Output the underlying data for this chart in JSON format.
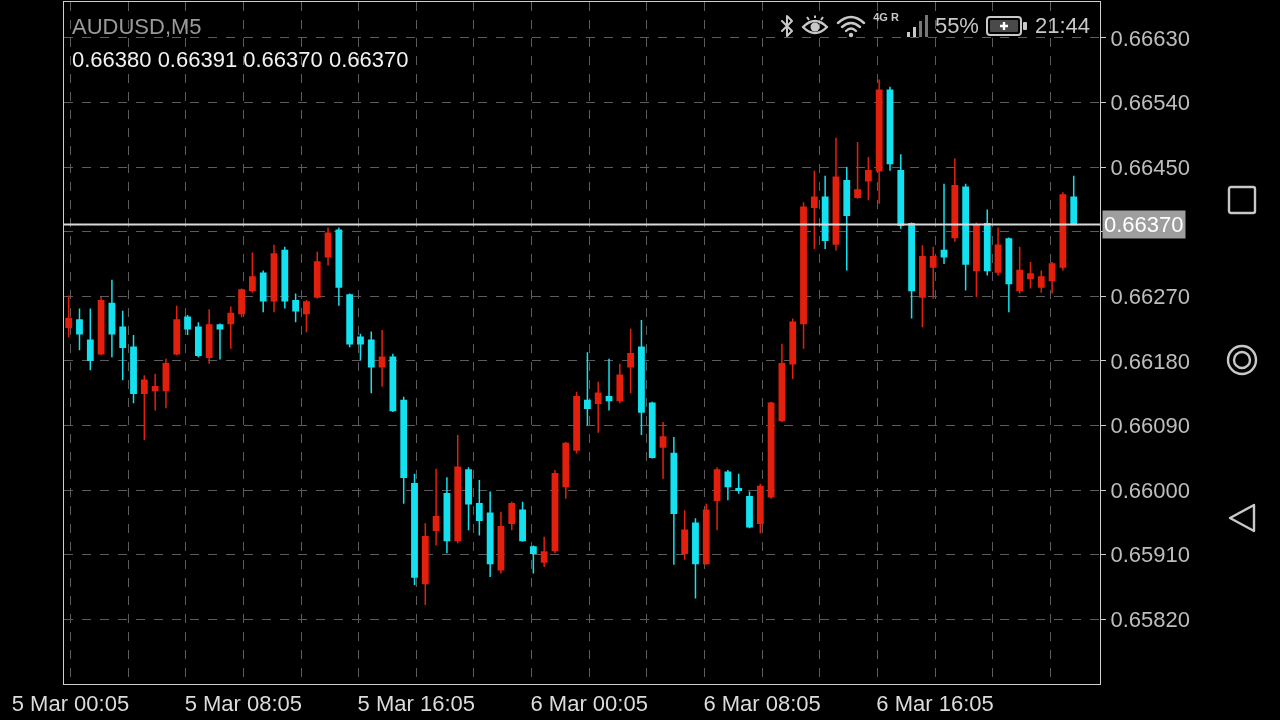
{
  "chart_data": {
    "type": "candlestick",
    "title": "AUDUSD,M5",
    "subtitle": "0.66380 0.66391 0.66370 0.66370",
    "x": [
      "--03-05T00:00",
      "--03-05T00:30",
      "--03-05T01:00",
      "--03-05T01:30",
      "--03-05T02:00",
      "--03-05T02:30",
      "--03-05T03:00",
      "--03-05T03:30",
      "--03-05T04:00",
      "--03-05T04:30",
      "--03-05T05:00",
      "--03-05T05:30",
      "--03-05T06:00",
      "--03-05T06:30",
      "--03-05T07:00",
      "--03-05T07:30",
      "--03-05T08:00",
      "--03-05T08:30",
      "--03-05T09:00",
      "--03-05T09:30",
      "--03-05T10:00",
      "--03-05T10:30",
      "--03-05T11:00",
      "--03-05T11:30",
      "--03-05T12:00",
      "--03-05T12:30",
      "--03-05T13:00",
      "--03-05T13:30",
      "--03-05T14:00",
      "--03-05T14:30",
      "--03-05T15:00",
      "--03-05T15:30",
      "--03-05T16:00",
      "--03-05T16:30",
      "--03-05T17:00",
      "--03-05T17:30",
      "--03-05T18:00",
      "--03-05T18:30",
      "--03-05T19:00",
      "--03-05T19:30",
      "--03-05T20:00",
      "--03-05T20:30",
      "--03-05T21:00",
      "--03-05T21:30",
      "--03-05T22:00",
      "--03-05T22:30",
      "--03-05T23:00",
      "--03-05T23:30",
      "--03-06T00:00",
      "--03-06T00:30",
      "--03-06T01:00",
      "--03-06T01:30",
      "--03-06T02:00",
      "--03-06T02:30",
      "--03-06T03:00",
      "--03-06T03:30",
      "--03-06T04:00",
      "--03-06T04:30",
      "--03-06T05:00",
      "--03-06T05:30",
      "--03-06T06:00",
      "--03-06T06:30",
      "--03-06T07:00",
      "--03-06T07:30",
      "--03-06T08:00",
      "--03-06T08:30",
      "--03-06T09:00",
      "--03-06T09:30",
      "--03-06T10:00",
      "--03-06T10:30",
      "--03-06T11:00",
      "--03-06T11:30",
      "--03-06T12:00",
      "--03-06T12:30",
      "--03-06T13:00",
      "--03-06T13:30",
      "--03-06T14:00",
      "--03-06T14:30",
      "--03-06T15:00",
      "--03-06T15:30",
      "--03-06T16:00",
      "--03-06T16:30",
      "--03-06T17:00",
      "--03-06T17:30",
      "--03-06T18:00",
      "--03-06T18:30",
      "--03-06T19:00",
      "--03-06T19:30",
      "--03-06T20:00",
      "--03-06T20:30",
      "--03-06T21:00",
      "--03-06T21:30",
      "--03-06T22:00",
      "--03-06T22:30"
    ],
    "ohlc": [
      [
        0.66227,
        0.66271,
        0.66213,
        0.66239
      ],
      [
        0.66237,
        0.66253,
        0.66195,
        0.66218
      ],
      [
        0.66209,
        0.66253,
        0.66167,
        0.66181
      ],
      [
        0.6619,
        0.66269,
        0.66188,
        0.66264
      ],
      [
        0.6626,
        0.66293,
        0.66185,
        0.66218
      ],
      [
        0.66227,
        0.6625,
        0.66153,
        0.66199
      ],
      [
        0.66199,
        0.66216,
        0.66121,
        0.66135
      ],
      [
        0.66135,
        0.6616,
        0.6607,
        0.66153
      ],
      [
        0.66139,
        0.66162,
        0.66111,
        0.66144
      ],
      [
        0.66139,
        0.66183,
        0.66114,
        0.66176
      ],
      [
        0.6619,
        0.66257,
        0.66188,
        0.66237
      ],
      [
        0.66241,
        0.66244,
        0.66216,
        0.66225
      ],
      [
        0.66227,
        0.66234,
        0.66185,
        0.66188
      ],
      [
        0.66185,
        0.66252,
        0.66176,
        0.6623
      ],
      [
        0.6623,
        0.66232,
        0.66182,
        0.66225
      ],
      [
        0.66232,
        0.66256,
        0.66197,
        0.66246
      ],
      [
        0.66246,
        0.66281,
        0.66241,
        0.66279
      ],
      [
        0.66278,
        0.66331,
        0.66275,
        0.66297
      ],
      [
        0.66302,
        0.66306,
        0.66248,
        0.66264
      ],
      [
        0.66264,
        0.66342,
        0.66248,
        0.66329
      ],
      [
        0.66334,
        0.66339,
        0.66253,
        0.66264
      ],
      [
        0.66264,
        0.66274,
        0.66234,
        0.6625
      ],
      [
        0.66246,
        0.66265,
        0.6622,
        0.66262
      ],
      [
        0.66269,
        0.66332,
        0.66267,
        0.66318
      ],
      [
        0.66325,
        0.66366,
        0.66313,
        0.66358
      ],
      [
        0.66362,
        0.66366,
        0.66257,
        0.66283
      ],
      [
        0.66272,
        0.66274,
        0.66199,
        0.66204
      ],
      [
        0.66213,
        0.66218,
        0.66181,
        0.66204
      ],
      [
        0.66209,
        0.66221,
        0.66135,
        0.66172
      ],
      [
        0.66172,
        0.66223,
        0.66144,
        0.66185
      ],
      [
        0.66185,
        0.6619,
        0.66109,
        0.66111
      ],
      [
        0.66125,
        0.6613,
        0.65981,
        0.66018
      ],
      [
        0.66009,
        0.66023,
        0.65868,
        0.65879
      ],
      [
        0.6587,
        0.65954,
        0.6584,
        0.65935
      ],
      [
        0.65944,
        0.6603,
        0.65923,
        0.65963
      ],
      [
        0.65995,
        0.66018,
        0.65912,
        0.6593
      ],
      [
        0.6593,
        0.66077,
        0.65926,
        0.66032
      ],
      [
        0.66028,
        0.66032,
        0.65944,
        0.65981
      ],
      [
        0.65981,
        0.66014,
        0.65937,
        0.65958
      ],
      [
        0.65968,
        0.65998,
        0.65879,
        0.65898
      ],
      [
        0.65889,
        0.6597,
        0.65884,
        0.65949
      ],
      [
        0.65954,
        0.65984,
        0.65944,
        0.65981
      ],
      [
        0.65972,
        0.65984,
        0.65928,
        0.6593
      ],
      [
        0.65921,
        0.65923,
        0.65884,
        0.65912
      ],
      [
        0.659,
        0.65935,
        0.65893,
        0.65914
      ],
      [
        0.65916,
        0.66028,
        0.65912,
        0.66023
      ],
      [
        0.66005,
        0.66067,
        0.65988,
        0.66065
      ],
      [
        0.66056,
        0.66137,
        0.66051,
        0.6613
      ],
      [
        0.66125,
        0.66192,
        0.6609,
        0.66114
      ],
      [
        0.66121,
        0.66151,
        0.6608,
        0.66135
      ],
      [
        0.6613,
        0.66183,
        0.66111,
        0.66125
      ],
      [
        0.66125,
        0.66176,
        0.66121,
        0.6616
      ],
      [
        0.66172,
        0.66225,
        0.66135,
        0.6619
      ],
      [
        0.66199,
        0.66237,
        0.66077,
        0.66109
      ],
      [
        0.66121,
        0.66123,
        0.66044,
        0.66046
      ],
      [
        0.6606,
        0.66095,
        0.66016,
        0.66074
      ],
      [
        0.66051,
        0.66074,
        0.65896,
        0.65968
      ],
      [
        0.65912,
        0.65972,
        0.65903,
        0.65944
      ],
      [
        0.65954,
        0.65961,
        0.65849,
        0.65898
      ],
      [
        0.65898,
        0.65981,
        0.65896,
        0.65972
      ],
      [
        0.65986,
        0.66032,
        0.65944,
        0.66028
      ],
      [
        0.66025,
        0.66028,
        0.65986,
        0.66005
      ],
      [
        0.66002,
        0.66023,
        0.65995,
        0.66
      ],
      [
        0.65991,
        0.65998,
        0.65947,
        0.65949
      ],
      [
        0.65954,
        0.66009,
        0.6594,
        0.66005
      ],
      [
        0.65991,
        0.66123,
        0.65988,
        0.66121
      ],
      [
        0.66097,
        0.66204,
        0.66095,
        0.66176
      ],
      [
        0.66176,
        0.66239,
        0.66155,
        0.66234
      ],
      [
        0.66232,
        0.66401,
        0.66197,
        0.66394
      ],
      [
        0.66394,
        0.66445,
        0.66336,
        0.66408
      ],
      [
        0.66408,
        0.66438,
        0.66336,
        0.66348
      ],
      [
        0.66343,
        0.66491,
        0.66334,
        0.66436
      ],
      [
        0.66431,
        0.6645,
        0.66306,
        0.66383
      ],
      [
        0.66408,
        0.66485,
        0.66406,
        0.66418
      ],
      [
        0.66431,
        0.66464,
        0.66404,
        0.66445
      ],
      [
        0.66445,
        0.66572,
        0.66399,
        0.66557
      ],
      [
        0.66557,
        0.66562,
        0.66445,
        0.66455
      ],
      [
        0.66445,
        0.66468,
        0.66364,
        0.66369
      ],
      [
        0.66371,
        0.66373,
        0.66239,
        0.66278
      ],
      [
        0.66269,
        0.66341,
        0.66227,
        0.66325
      ],
      [
        0.66311,
        0.66339,
        0.66267,
        0.66325
      ],
      [
        0.66334,
        0.66427,
        0.66315,
        0.66325
      ],
      [
        0.66352,
        0.66462,
        0.66346,
        0.66424
      ],
      [
        0.66422,
        0.66427,
        0.66278,
        0.66315
      ],
      [
        0.66306,
        0.66373,
        0.66269,
        0.66369
      ],
      [
        0.66371,
        0.66391,
        0.66299,
        0.66306
      ],
      [
        0.66304,
        0.66366,
        0.66299,
        0.66341
      ],
      [
        0.6635,
        0.66352,
        0.66248,
        0.66288
      ],
      [
        0.66278,
        0.66339,
        0.66274,
        0.66306
      ],
      [
        0.66295,
        0.66318,
        0.66281,
        0.66301
      ],
      [
        0.66283,
        0.66306,
        0.66275,
        0.66297
      ],
      [
        0.66292,
        0.66318,
        0.66274,
        0.66315
      ],
      [
        0.66311,
        0.66415,
        0.66306,
        0.66411
      ],
      [
        0.66408,
        0.66438,
        0.66369,
        0.6637
      ]
    ],
    "colors": [
      "#e3200d",
      "#14e1ef",
      "#14e1ef",
      "#e3200d",
      "#14e1ef",
      "#14e1ef",
      "#14e1ef",
      "#e3200d",
      "#e3200d",
      "#e3200d",
      "#e3200d",
      "#14e1ef",
      "#14e1ef",
      "#e3200d",
      "#14e1ef",
      "#e3200d",
      "#e3200d",
      "#e3200d",
      "#14e1ef",
      "#e3200d",
      "#14e1ef",
      "#14e1ef",
      "#e3200d",
      "#e3200d",
      "#e3200d",
      "#14e1ef",
      "#14e1ef",
      "#14e1ef",
      "#14e1ef",
      "#e3200d",
      "#14e1ef",
      "#14e1ef",
      "#14e1ef",
      "#e3200d",
      "#e3200d",
      "#14e1ef",
      "#e3200d",
      "#14e1ef",
      "#14e1ef",
      "#14e1ef",
      "#e3200d",
      "#e3200d",
      "#14e1ef",
      "#14e1ef",
      "#e3200d",
      "#e3200d",
      "#e3200d",
      "#e3200d",
      "#14e1ef",
      "#e3200d",
      "#14e1ef",
      "#e3200d",
      "#e3200d",
      "#14e1ef",
      "#14e1ef",
      "#e3200d",
      "#14e1ef",
      "#e3200d",
      "#14e1ef",
      "#e3200d",
      "#e3200d",
      "#14e1ef",
      "#14e1ef",
      "#14e1ef",
      "#e3200d",
      "#e3200d",
      "#e3200d",
      "#e3200d",
      "#e3200d",
      "#e3200d",
      "#14e1ef",
      "#e3200d",
      "#14e1ef",
      "#e3200d",
      "#e3200d",
      "#e3200d",
      "#14e1ef",
      "#14e1ef",
      "#14e1ef",
      "#e3200d",
      "#e3200d",
      "#14e1ef",
      "#e3200d",
      "#14e1ef",
      "#e3200d",
      "#14e1ef",
      "#e3200d",
      "#14e1ef",
      "#e3200d",
      "#e3200d",
      "#e3200d",
      "#e3200d",
      "#e3200d",
      "#14e1ef"
    ],
    "xlim": [
      "--03-04T23:47",
      "--03-06T23:43"
    ],
    "xticks": [
      {
        "value": "--03-05T00:05",
        "label": "5 Mar 00:05"
      },
      {
        "value": "--03-05T02:45",
        "label": null
      },
      {
        "value": "--03-05T05:25",
        "label": null
      },
      {
        "value": "--03-05T08:05",
        "label": "5 Mar 08:05"
      },
      {
        "value": "--03-05T10:45",
        "label": null
      },
      {
        "value": "--03-05T13:25",
        "label": null
      },
      {
        "value": "--03-05T16:05",
        "label": "5 Mar 16:05"
      },
      {
        "value": "--03-05T18:45",
        "label": null
      },
      {
        "value": "--03-05T21:25",
        "label": null
      },
      {
        "value": "--03-06T00:05",
        "label": "6 Mar 00:05"
      },
      {
        "value": "--03-06T02:45",
        "label": null
      },
      {
        "value": "--03-06T05:25",
        "label": null
      },
      {
        "value": "--03-06T08:05",
        "label": "6 Mar 08:05"
      },
      {
        "value": "--03-06T10:45",
        "label": null
      },
      {
        "value": "--03-06T13:25",
        "label": null
      },
      {
        "value": "--03-06T16:05",
        "label": "6 Mar 16:05"
      },
      {
        "value": "--03-06T18:45",
        "label": null
      },
      {
        "value": "--03-06T21:25",
        "label": null
      }
    ],
    "ylim": [
      0.6573,
      0.6668
    ],
    "yticks": [
      {
        "value": 0.6582,
        "label": "0.65820"
      },
      {
        "value": 0.6591,
        "label": "0.65910"
      },
      {
        "value": 0.66,
        "label": "0.66000"
      },
      {
        "value": 0.6609,
        "label": "0.66090"
      },
      {
        "value": 0.6618,
        "label": "0.66180"
      },
      {
        "value": 0.6627,
        "label": "0.66270"
      },
      {
        "value": 0.6636,
        "label": null
      },
      {
        "value": 0.6645,
        "label": "0.66450"
      },
      {
        "value": 0.6654,
        "label": "0.66540"
      },
      {
        "value": 0.6663,
        "label": "0.66630"
      }
    ],
    "ref_lines": [
      {
        "axis": "y",
        "value": 0.6637,
        "label": "0.66370",
        "color": "#d9d9d9"
      }
    ],
    "grid": true,
    "annotations": [
      "4G R",
      "55%",
      "21:44"
    ]
  }
}
